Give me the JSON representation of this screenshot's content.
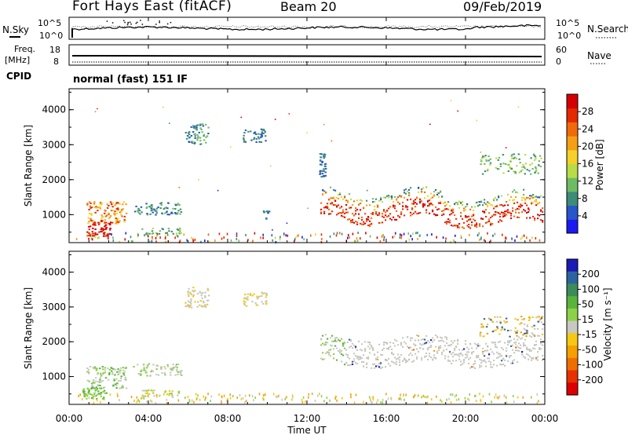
{
  "header": {
    "station": "Fort Hays East (fitACF)",
    "beam": "Beam 20",
    "date": "09/Feb/2019"
  },
  "noise_panel": {
    "left_label": "N.Sky",
    "right_label": "N.Search",
    "left_ticks": [
      "10^5",
      "10^0"
    ],
    "right_ticks": [
      "10^5",
      "10^0"
    ]
  },
  "freq_panel": {
    "left_label_1": "Freq.",
    "left_label_2": "[MHz]",
    "right_label": "Nave",
    "left_ticks": [
      "18",
      "8"
    ],
    "right_ticks": [
      "60",
      "0"
    ]
  },
  "cpid": {
    "label": "CPID",
    "mode": "normal (fast) 151 IF"
  },
  "chart_data": [
    {
      "type": "heatmap",
      "quantity": "power",
      "ylabel": "Slant Range [km]",
      "yticks": [
        "1000",
        "2000",
        "3000",
        "4000"
      ],
      "ylim": [
        200,
        4600
      ],
      "colorbar_label": "Power [dB]",
      "colorbar_ticks": [
        "4",
        "8",
        "12",
        "16",
        "20",
        "24",
        "28"
      ],
      "colorbar_colors": [
        "#1a1af0",
        "#2855c8",
        "#3c8c78",
        "#6fbb64",
        "#b7dc46",
        "#f5d02a",
        "#f5a014",
        "#f06a0a",
        "#e52a00",
        "#d60000"
      ]
    },
    {
      "type": "heatmap",
      "quantity": "velocity",
      "ylabel": "Slant Range [km]",
      "yticks": [
        "1000",
        "2000",
        "3000",
        "4000"
      ],
      "ylim": [
        200,
        4600
      ],
      "colorbar_label": "Velocity [m s⁻¹]",
      "colorbar_ticks": [
        "200",
        "100",
        "50",
        "15",
        "-15",
        "-50",
        "-100",
        "-200"
      ],
      "colorbar_colors": [
        "#1a1ab4",
        "#2d64a0",
        "#3c8c5a",
        "#5ab43c",
        "#8cd246",
        "#c8c8c0",
        "#f5c814",
        "#f5a000",
        "#f06e00",
        "#e63200",
        "#dc0000"
      ],
      "xlabel": "Time UT",
      "xticks": [
        "00:00",
        "04:00",
        "08:00",
        "12:00",
        "16:00",
        "20:00",
        "00:00"
      ]
    }
  ]
}
